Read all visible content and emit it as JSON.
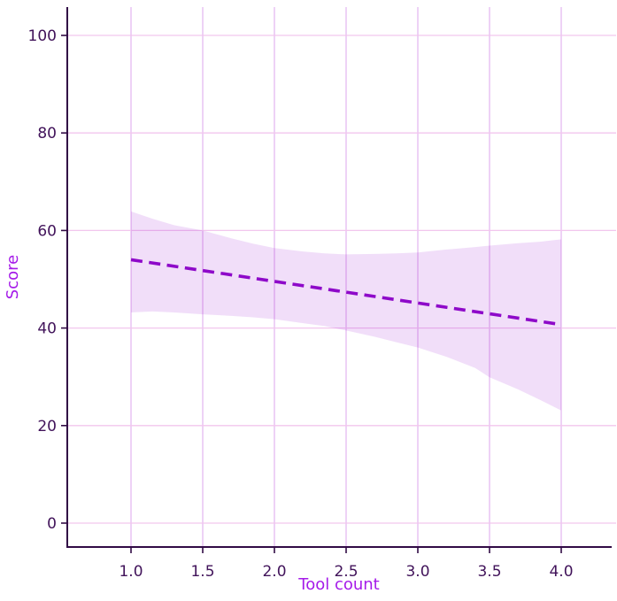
{
  "figure": {
    "title": "",
    "xlabel": "Tool count",
    "ylabel": "Score"
  },
  "colors": {
    "background": "#ffffff",
    "spine": "#310b45",
    "tick_mark": "#310b45",
    "tick_label": "#41135a",
    "axis_label": "#a51be9",
    "grid_vertical": "#e5baf0",
    "grid_horizontal": "#f2c6ee",
    "line": "#8e09c9",
    "band_fill": "#9400d3",
    "band_opacity": 0.13
  },
  "chart_data": {
    "type": "line",
    "title": "",
    "xlabel": "Tool count",
    "ylabel": "Score",
    "xlim": [
      0.55,
      4.35
    ],
    "ylim": [
      -5,
      106
    ],
    "grid": true,
    "legend": "none",
    "x_ticks": [
      1.0,
      1.5,
      2.0,
      2.5,
      3.0,
      3.5,
      4.0
    ],
    "x_tick_labels": [
      "1.0",
      "1.5",
      "2.0",
      "2.5",
      "3.0",
      "3.5",
      "4.0"
    ],
    "y_ticks": [
      0,
      20,
      40,
      60,
      80,
      100
    ],
    "y_tick_labels": [
      "0",
      "20",
      "40",
      "60",
      "80",
      "100"
    ],
    "series": [
      {
        "name": "regression-line",
        "style": "dashed",
        "x": [
          1.0,
          4.0
        ],
        "y": [
          54.0,
          40.7
        ]
      }
    ],
    "confidence_band": {
      "name": "confidence-interval",
      "x": [
        1.0,
        1.15,
        1.3,
        1.5,
        1.7,
        1.85,
        2.0,
        2.2,
        2.35,
        2.5,
        2.7,
        2.85,
        3.0,
        3.2,
        3.4,
        3.5,
        3.7,
        3.85,
        4.0
      ],
      "upper": [
        63.9,
        62.4,
        61.1,
        60.0,
        58.4,
        57.3,
        56.4,
        55.7,
        55.3,
        55.1,
        55.2,
        55.3,
        55.5,
        56.1,
        56.6,
        56.9,
        57.4,
        57.7,
        58.2
      ],
      "lower": [
        43.2,
        43.4,
        43.2,
        42.8,
        42.5,
        42.2,
        41.8,
        41.0,
        40.4,
        39.5,
        38.2,
        37.1,
        36.0,
        34.1,
        31.8,
        29.9,
        27.4,
        25.3,
        23.1
      ]
    }
  }
}
